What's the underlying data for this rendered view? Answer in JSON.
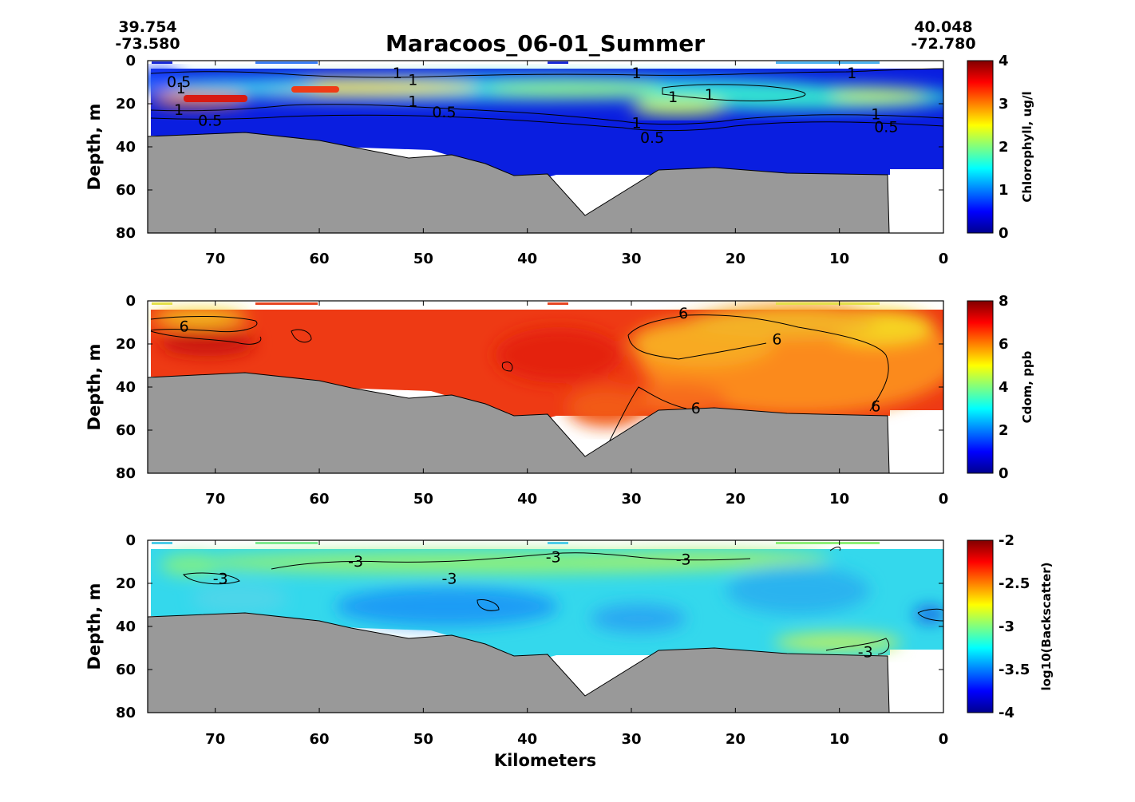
{
  "figure": {
    "title": "Maracoos_06-01_Summer",
    "start": {
      "lat": "39.754",
      "lon": "-73.580"
    },
    "end": {
      "lat": "40.048",
      "lon": "-72.780"
    },
    "xlabel": "Kilometers",
    "colors": {
      "seafloor": "#999999",
      "frame": "#000000"
    }
  },
  "chart_data": [
    {
      "type": "heatmap",
      "ylabel": "Depth, m",
      "colorbar_label": "Chlorophyll, ug/l",
      "xlim": [
        76.5,
        0
      ],
      "ylim": [
        80,
        0
      ],
      "xticks": [
        "70",
        "60",
        "50",
        "40",
        "30",
        "20",
        "10",
        "0"
      ],
      "yticks": [
        "0",
        "20",
        "40",
        "60",
        "80"
      ],
      "cbar_ticks": [
        "0",
        "1",
        "2",
        "3",
        "4"
      ],
      "clim": [
        0,
        4
      ],
      "contour_labels": [
        {
          "text": "0.5",
          "x": 73.5,
          "y": 10
        },
        {
          "text": "1",
          "x": 73.3,
          "y": 13
        },
        {
          "text": "1",
          "x": 73.5,
          "y": 23
        },
        {
          "text": "0.5",
          "x": 70.5,
          "y": 28
        },
        {
          "text": "1",
          "x": 52.5,
          "y": 6
        },
        {
          "text": "1",
          "x": 51,
          "y": 9
        },
        {
          "text": "1",
          "x": 51,
          "y": 19
        },
        {
          "text": "0.5",
          "x": 48,
          "y": 24
        },
        {
          "text": "1",
          "x": 29.5,
          "y": 6
        },
        {
          "text": "1",
          "x": 29.5,
          "y": 29
        },
        {
          "text": "0.5",
          "x": 28,
          "y": 36
        },
        {
          "text": "1",
          "x": 26,
          "y": 17
        },
        {
          "text": "1",
          "x": 22.5,
          "y": 16
        },
        {
          "text": "1",
          "x": 8.8,
          "y": 6
        },
        {
          "text": "1",
          "x": 6.5,
          "y": 25
        },
        {
          "text": "0.5",
          "x": 5.5,
          "y": 31
        }
      ]
    },
    {
      "type": "heatmap",
      "ylabel": "Depth, m",
      "colorbar_label": "Cdom, ppb",
      "xlim": [
        76.5,
        0
      ],
      "ylim": [
        80,
        0
      ],
      "xticks": [
        "70",
        "60",
        "50",
        "40",
        "30",
        "20",
        "10",
        "0"
      ],
      "yticks": [
        "0",
        "20",
        "40",
        "60",
        "80"
      ],
      "cbar_ticks": [
        "0",
        "2",
        "4",
        "6",
        "8"
      ],
      "clim": [
        0,
        8
      ],
      "contour_labels": [
        {
          "text": "6",
          "x": 73,
          "y": 12
        },
        {
          "text": "6",
          "x": 25,
          "y": 6
        },
        {
          "text": "6",
          "x": 16,
          "y": 18
        },
        {
          "text": "6",
          "x": 23.8,
          "y": 50
        },
        {
          "text": "6",
          "x": 6.5,
          "y": 49
        }
      ]
    },
    {
      "type": "heatmap",
      "ylabel": "Depth, m",
      "colorbar_label": "log10(Backscatter)",
      "xlim": [
        76.5,
        0
      ],
      "ylim": [
        80,
        0
      ],
      "xticks": [
        "70",
        "60",
        "50",
        "40",
        "30",
        "20",
        "10",
        "0"
      ],
      "yticks": [
        "0",
        "20",
        "40",
        "60",
        "80"
      ],
      "cbar_ticks": [
        "-4",
        "-3.5",
        "-3",
        "-2.5",
        "-2"
      ],
      "clim": [
        -4,
        -2
      ],
      "contour_labels": [
        {
          "text": "-3",
          "x": 69.5,
          "y": 18
        },
        {
          "text": "-3",
          "x": 56.5,
          "y": 10
        },
        {
          "text": "-3",
          "x": 47.5,
          "y": 18
        },
        {
          "text": "-3",
          "x": 37.5,
          "y": 8
        },
        {
          "text": "-3",
          "x": 25,
          "y": 9
        },
        {
          "text": "-3",
          "x": 7.5,
          "y": 52
        }
      ]
    }
  ],
  "seafloor_profile": [
    [
      76.5,
      36
    ],
    [
      66.5,
      33
    ],
    [
      60,
      37
    ],
    [
      57,
      40
    ],
    [
      51,
      45
    ],
    [
      47,
      44
    ],
    [
      44,
      47
    ],
    [
      41,
      53
    ],
    [
      38,
      52.5
    ],
    [
      34.5,
      72
    ],
    [
      28,
      52
    ],
    [
      22,
      49
    ],
    [
      15,
      52
    ],
    [
      5.5,
      53
    ],
    [
      5.5,
      80
    ]
  ]
}
